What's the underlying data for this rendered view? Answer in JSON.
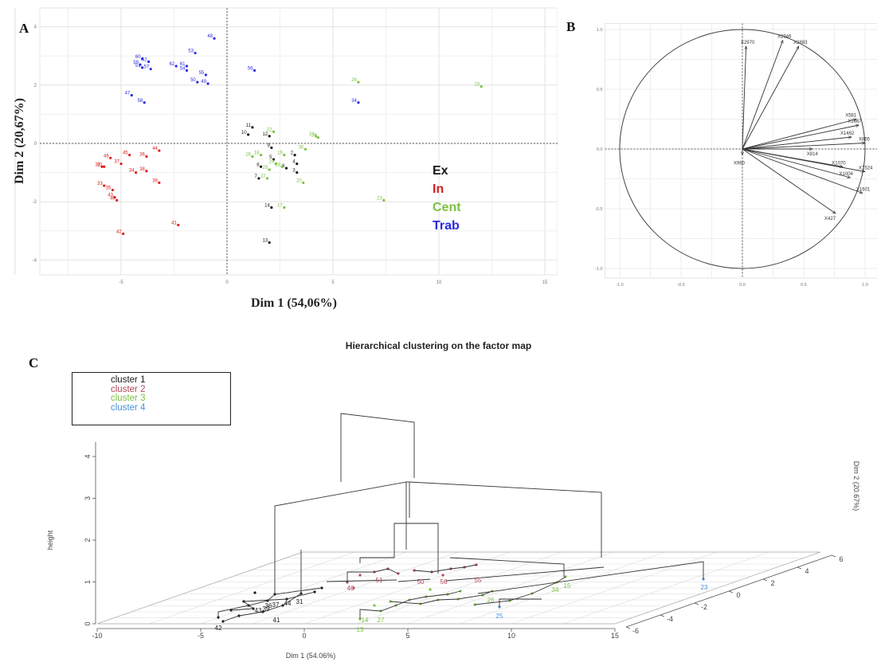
{
  "panels": {
    "a_letter": "A",
    "b_letter": "B",
    "c_letter": "C"
  },
  "chart_data": [
    {
      "type": "scatter",
      "panel": "A",
      "xlabel": "Dim 1 (54,06%)",
      "ylabel": "Dim 2 (20,67%)",
      "xlim": [
        -10,
        15
      ],
      "ylim": [
        -4.3,
        4
      ],
      "xticks": [
        -5,
        0,
        5,
        10,
        15
      ],
      "xtick_labels": [
        "-5",
        "0",
        "5",
        "10",
        "15"
      ],
      "yticks": [
        -4,
        -2,
        0,
        2,
        4
      ],
      "yticks_labels": [
        "-4",
        "-2",
        "0",
        "2",
        "4"
      ],
      "grid": true,
      "legend_position": "right",
      "series": [
        {
          "name": "Ex",
          "color": "#1a1a1a",
          "points": [
            {
              "x": 1.2,
              "y": 0.55,
              "label": "11"
            },
            {
              "x": 1.0,
              "y": 0.3,
              "label": "10"
            },
            {
              "x": 2.0,
              "y": 0.25,
              "label": "12"
            },
            {
              "x": 2.1,
              "y": -0.15,
              "label": "9"
            },
            {
              "x": 1.6,
              "y": -0.8,
              "label": "8"
            },
            {
              "x": 1.5,
              "y": -1.2,
              "label": "7"
            },
            {
              "x": 2.2,
              "y": -0.55,
              "label": "5"
            },
            {
              "x": 3.3,
              "y": -0.7,
              "label": "4"
            },
            {
              "x": 3.3,
              "y": -1.0,
              "label": "3"
            },
            {
              "x": 2.8,
              "y": -0.85,
              "label": "6"
            },
            {
              "x": 3.2,
              "y": -0.4,
              "label": "2"
            },
            {
              "x": 2.1,
              "y": -2.2,
              "label": "14"
            },
            {
              "x": 2.0,
              "y": -3.4,
              "label": "13"
            }
          ]
        },
        {
          "name": "In",
          "color": "#d92020",
          "points": [
            {
              "x": -5.5,
              "y": -0.5,
              "label": "46"
            },
            {
              "x": -5.8,
              "y": -0.8,
              "label": "31"
            },
            {
              "x": -5.9,
              "y": -0.8,
              "label": "32"
            },
            {
              "x": -5.0,
              "y": -0.7,
              "label": "37"
            },
            {
              "x": -4.6,
              "y": -0.4,
              "label": "45"
            },
            {
              "x": -3.2,
              "y": -0.25,
              "label": "44"
            },
            {
              "x": -3.8,
              "y": -0.45,
              "label": "36"
            },
            {
              "x": -3.8,
              "y": -0.95,
              "label": "38"
            },
            {
              "x": -4.3,
              "y": -1.0,
              "label": "34"
            },
            {
              "x": -3.2,
              "y": -1.35,
              "label": "39"
            },
            {
              "x": -5.8,
              "y": -1.45,
              "label": "33"
            },
            {
              "x": -5.4,
              "y": -1.6,
              "label": "35"
            },
            {
              "x": -5.3,
              "y": -1.85,
              "label": "43"
            },
            {
              "x": -5.2,
              "y": -1.95,
              "label": "40"
            },
            {
              "x": -2.3,
              "y": -2.8,
              "label": "41"
            },
            {
              "x": -4.9,
              "y": -3.1,
              "label": "42"
            }
          ]
        },
        {
          "name": "Cent",
          "color": "#7cc142",
          "points": [
            {
              "x": 6.2,
              "y": 2.1,
              "label": "26"
            },
            {
              "x": 12.0,
              "y": 1.95,
              "label": "15"
            },
            {
              "x": 2.2,
              "y": 0.4,
              "label": "22"
            },
            {
              "x": 4.2,
              "y": 0.25,
              "label": "21"
            },
            {
              "x": 4.3,
              "y": 0.2,
              "label": "29"
            },
            {
              "x": 1.2,
              "y": -0.45,
              "label": "16"
            },
            {
              "x": 1.6,
              "y": -0.4,
              "label": "18"
            },
            {
              "x": 2.7,
              "y": -0.4,
              "label": "19"
            },
            {
              "x": 3.7,
              "y": -0.2,
              "label": "30"
            },
            {
              "x": 2.3,
              "y": -0.7,
              "label": "24"
            },
            {
              "x": 2.0,
              "y": -0.9,
              "label": "25"
            },
            {
              "x": 2.6,
              "y": -0.8,
              "label": "28"
            },
            {
              "x": 1.9,
              "y": -1.2,
              "label": "27"
            },
            {
              "x": 3.6,
              "y": -1.35,
              "label": "20"
            },
            {
              "x": 7.4,
              "y": -1.95,
              "label": "23"
            },
            {
              "x": 2.7,
              "y": -2.2,
              "label": "17"
            }
          ]
        },
        {
          "name": "Trab",
          "color": "#2a2ae0",
          "points": [
            {
              "x": -0.6,
              "y": 3.6,
              "label": "48"
            },
            {
              "x": -1.5,
              "y": 3.1,
              "label": "53"
            },
            {
              "x": -4.0,
              "y": 2.9,
              "label": "60"
            },
            {
              "x": -3.7,
              "y": 2.8,
              "label": "52"
            },
            {
              "x": -4.1,
              "y": 2.7,
              "label": "59"
            },
            {
              "x": -4.0,
              "y": 2.6,
              "label": "51"
            },
            {
              "x": -3.6,
              "y": 2.55,
              "label": "57"
            },
            {
              "x": -2.4,
              "y": 2.65,
              "label": "62"
            },
            {
              "x": -1.9,
              "y": 2.65,
              "label": "61"
            },
            {
              "x": -1.9,
              "y": 2.5,
              "label": "54"
            },
            {
              "x": -1.0,
              "y": 2.35,
              "label": "55"
            },
            {
              "x": 1.3,
              "y": 2.5,
              "label": "56"
            },
            {
              "x": -1.4,
              "y": 2.1,
              "label": "50"
            },
            {
              "x": -0.9,
              "y": 2.05,
              "label": "49"
            },
            {
              "x": -4.5,
              "y": 1.65,
              "label": "47"
            },
            {
              "x": -3.9,
              "y": 1.4,
              "label": "58"
            },
            {
              "x": 6.2,
              "y": 1.4,
              "label": "34"
            }
          ]
        }
      ]
    },
    {
      "type": "line",
      "subtype": "variable-correlation-circle",
      "panel": "B",
      "xlim": [
        -1.0,
        1.0
      ],
      "ylim": [
        -1.0,
        1.0
      ],
      "xticks": [
        -1.0,
        -0.5,
        0.0,
        0.5,
        1.0
      ],
      "xtick_labels": [
        "-1.0",
        "-0.5",
        "0.0",
        "0.5",
        "1.0"
      ],
      "yticks": [
        -1.0,
        -0.5,
        0.0,
        0.5,
        1.0
      ],
      "ytick_labels": [
        "-1.0",
        "-0.5",
        "0.0",
        "0.5",
        "1.0"
      ],
      "grid": true,
      "vectors": [
        {
          "name": "X2970",
          "x": 0.03,
          "y": 0.86
        },
        {
          "name": "X2946",
          "x": 0.33,
          "y": 0.91
        },
        {
          "name": "X2883",
          "x": 0.46,
          "y": 0.86
        },
        {
          "name": "X581",
          "x": 0.93,
          "y": 0.25
        },
        {
          "name": "X1667",
          "x": 0.95,
          "y": 0.2
        },
        {
          "name": "X1462",
          "x": 0.89,
          "y": 0.1
        },
        {
          "name": "X865",
          "x": 1.0,
          "y": 0.05
        },
        {
          "name": "X814",
          "x": 0.57,
          "y": 0.0
        },
        {
          "name": "X960",
          "x": 0.0,
          "y": -0.05
        },
        {
          "name": "X1070",
          "x": 0.82,
          "y": -0.15
        },
        {
          "name": "X1524",
          "x": 1.0,
          "y": -0.19
        },
        {
          "name": "X1004",
          "x": 0.88,
          "y": -0.24
        },
        {
          "name": "X1601",
          "x": 0.98,
          "y": -0.37
        },
        {
          "name": "X427",
          "x": 0.76,
          "y": -0.54
        }
      ]
    },
    {
      "type": "scatter",
      "subtype": "3d-dendrogram",
      "panel": "C",
      "title": "Hierarchical clustering on the factor map",
      "xlabel": "Dim 1 (54.06%)",
      "ylabel": "Dim 2 (20.67%)",
      "zlabel": "height",
      "xticks": [
        -10,
        -5,
        0,
        5,
        10,
        15
      ],
      "xtick_labels": [
        "-10",
        "-5",
        "0",
        "5",
        "10",
        "15"
      ],
      "yticks": [
        -6,
        -4,
        -2,
        0,
        2,
        4,
        6
      ],
      "ytick_labels": [
        "-6",
        "-4",
        "-2",
        "0",
        "2",
        "4",
        "6"
      ],
      "zticks": [
        0,
        1,
        2,
        3,
        4
      ],
      "ztick_labels": [
        "0",
        "1",
        "2",
        "3",
        "4"
      ],
      "legend_position": "top-left",
      "legend": [
        {
          "name": "cluster 1",
          "color": "#1a1a1a"
        },
        {
          "name": "cluster 2",
          "color": "#b5485a"
        },
        {
          "name": "cluster 3",
          "color": "#7cc142"
        },
        {
          "name": "cluster 4",
          "color": "#4a90d9"
        }
      ],
      "point_labels": [
        {
          "text": "42",
          "cluster": 1
        },
        {
          "text": "41",
          "cluster": 1
        },
        {
          "text": "37",
          "cluster": 1
        },
        {
          "text": "44",
          "cluster": 1
        },
        {
          "text": "31",
          "cluster": 1
        },
        {
          "text": "43",
          "cluster": 1
        },
        {
          "text": "39",
          "cluster": 1
        },
        {
          "text": "36",
          "cluster": 1
        },
        {
          "text": "46",
          "cluster": 2
        },
        {
          "text": "51",
          "cluster": 2
        },
        {
          "text": "56",
          "cluster": 2
        },
        {
          "text": "55",
          "cluster": 2
        },
        {
          "text": "50",
          "cluster": 2
        },
        {
          "text": "13",
          "cluster": 3
        },
        {
          "text": "14",
          "cluster": 3
        },
        {
          "text": "27",
          "cluster": 3
        },
        {
          "text": "26",
          "cluster": 3
        },
        {
          "text": "34",
          "cluster": 3
        },
        {
          "text": "15",
          "cluster": 3
        },
        {
          "text": "23",
          "cluster": 4
        },
        {
          "text": "25",
          "cluster": 4
        }
      ]
    }
  ]
}
